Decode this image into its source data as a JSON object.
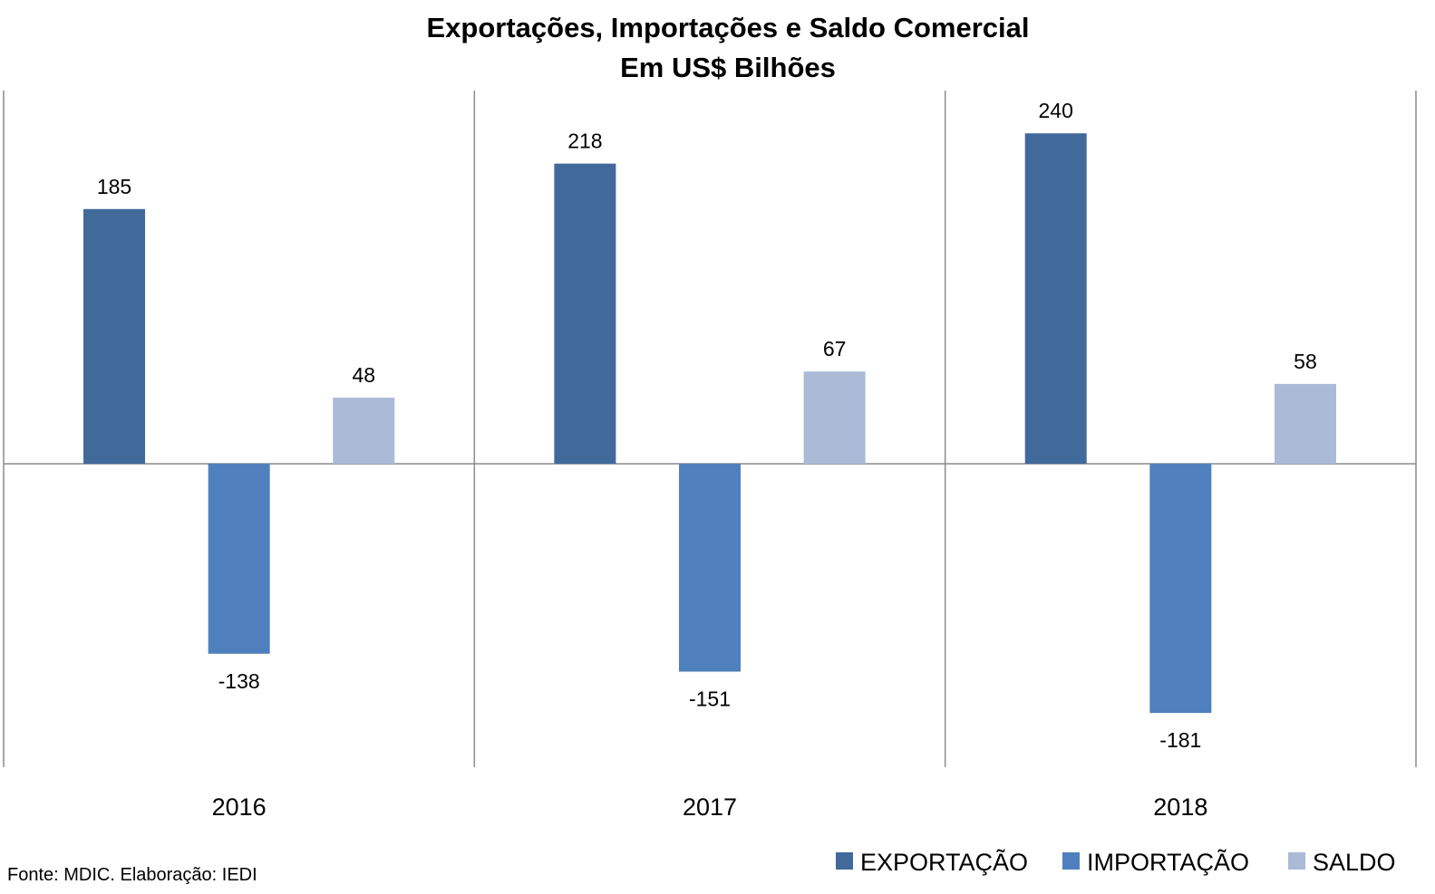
{
  "chart_data": {
    "type": "bar",
    "title": "Exportações, Importações e Saldo Comercial",
    "subtitle": "Em US$ Bilhões",
    "categories": [
      "2016",
      "2017",
      "2018"
    ],
    "series": [
      {
        "name": "EXPORTAÇÃO",
        "values": [
          185,
          218,
          240
        ],
        "color": "#41699A"
      },
      {
        "name": "IMPORTAÇÃO",
        "values": [
          -138,
          -151,
          -181
        ],
        "color": "#4F80BD"
      },
      {
        "name": "SALDO",
        "values": [
          48,
          67,
          58
        ],
        "color": "#AABAD7"
      }
    ],
    "ylim": [
      -220,
      270
    ],
    "grid": false,
    "legend_position": "bottom-right",
    "source": "Fonte: MDIC. Elaboração: IEDI"
  }
}
